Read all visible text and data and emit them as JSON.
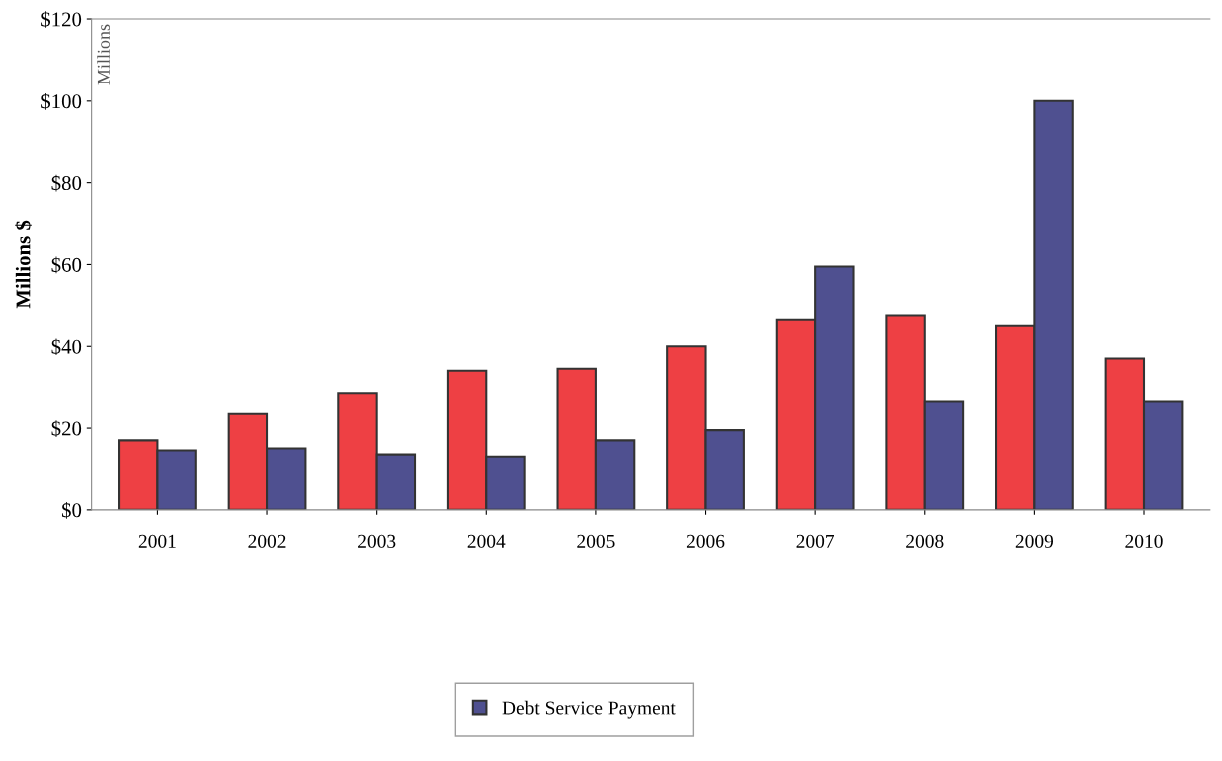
{
  "chart_data": {
    "type": "bar",
    "ylabel": "Millions $",
    "annotations": [
      "Millions"
    ],
    "categories": [
      "2001",
      "2002",
      "2003",
      "2004",
      "2005",
      "2006",
      "2007",
      "2008",
      "2009",
      "2010"
    ],
    "series": [
      {
        "color": "#ee4044",
        "values": [
          17,
          23.5,
          28.5,
          34,
          34.5,
          40,
          46.5,
          47.5,
          45,
          37
        ]
      },
      {
        "name": "Debt Service Payment",
        "color": "#4f5090",
        "values": [
          14.5,
          15,
          13.5,
          13,
          17,
          19.5,
          59.5,
          26.5,
          100,
          26.5
        ]
      }
    ],
    "ylim": [
      0,
      120
    ],
    "yticks": [
      {
        "value": 0,
        "label": "$0"
      },
      {
        "value": 20,
        "label": "$20"
      },
      {
        "value": 40,
        "label": "$40"
      },
      {
        "value": 60,
        "label": "$60"
      },
      {
        "value": 80,
        "label": "$80"
      },
      {
        "value": 100,
        "label": "$100"
      },
      {
        "value": 120,
        "label": "$120"
      }
    ],
    "grid": false,
    "legend": "bottom"
  }
}
